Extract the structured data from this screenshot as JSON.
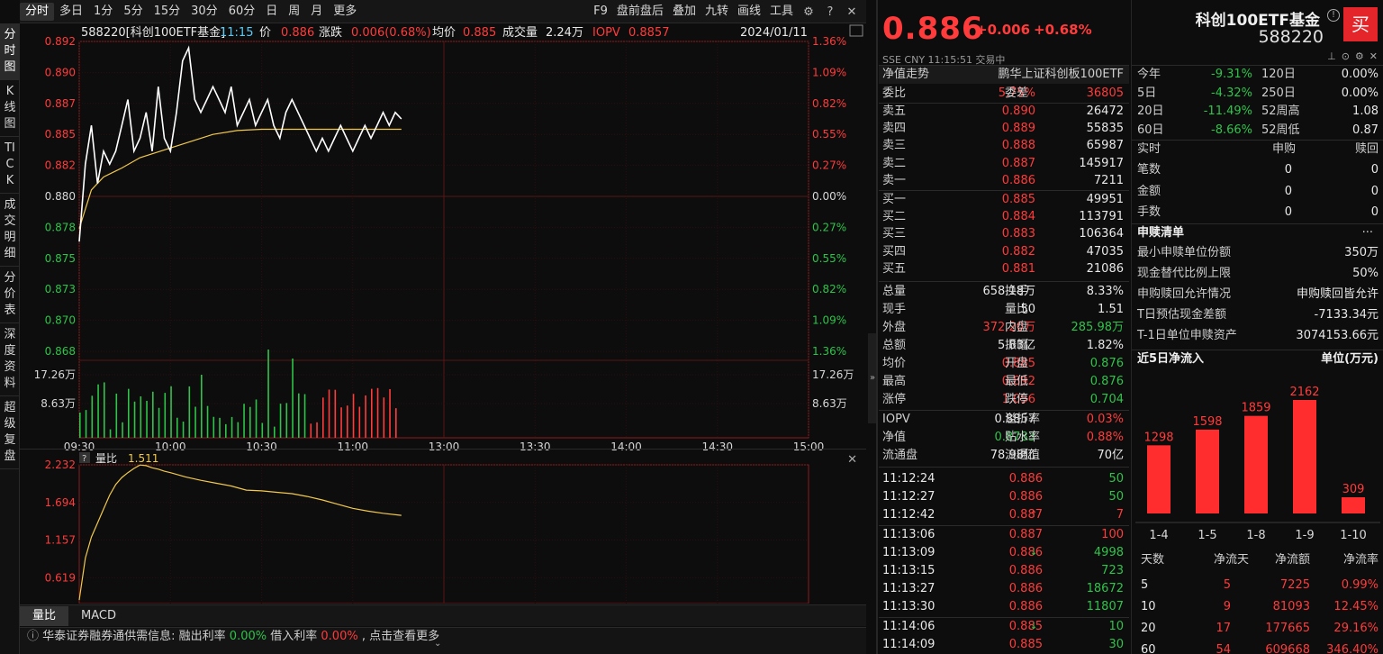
{
  "toolbar": {
    "periods": [
      "分时",
      "多日",
      "1分",
      "5分",
      "15分",
      "30分",
      "60分",
      "日",
      "周",
      "月",
      "更多"
    ],
    "active_period": "分时",
    "right_buttons": [
      "F9",
      "盘前盘后",
      "叠加",
      "九转",
      "画线",
      "工具"
    ]
  },
  "left_nav": [
    "分时图",
    "K线图",
    "TICK",
    "成交明细",
    "分价表",
    "深度资料",
    "超级复盘"
  ],
  "chart_header": {
    "code_name": "588220[科创100ETF基金]",
    "time": "11:15",
    "price_label": "价",
    "price": "0.886",
    "change_label": "涨跌",
    "change": "0.006(0.68%)",
    "avg_label": "均价",
    "avg": "0.885",
    "vol_label": "成交量",
    "vol": "2.24万",
    "iopv_label": "IOPV",
    "iopv": "0.8857",
    "date": "2024/01/11"
  },
  "chart_data": [
    {
      "type": "line",
      "x_ticks": [
        "09:30",
        "10:00",
        "10:30",
        "11:00",
        "13:00",
        "13:30",
        "14:00",
        "14:30",
        "15:00"
      ],
      "y_ticks_left": [
        "0.892",
        "0.890",
        "0.887",
        "0.885",
        "0.882",
        "0.880",
        "0.878",
        "0.875",
        "0.873",
        "0.870",
        "0.868"
      ],
      "y_ticks_right": [
        "1.36%",
        "1.09%",
        "0.82%",
        "0.55%",
        "0.27%",
        "0.00%",
        "0.27%",
        "0.55%",
        "0.82%",
        "1.09%",
        "1.36%"
      ],
      "ylim": [
        0.868,
        0.892
      ],
      "prev_close": 0.88,
      "series": [
        {
          "x": [
            0,
            2,
            4,
            6,
            8,
            10,
            12,
            14,
            16,
            18,
            20,
            22,
            24,
            26,
            28,
            30,
            32,
            34,
            36,
            38,
            40,
            42,
            44,
            46,
            48,
            50,
            52,
            54,
            56,
            58,
            60,
            62,
            64,
            66,
            68,
            70,
            72,
            74,
            76,
            78,
            80,
            82,
            84,
            86,
            88,
            90,
            92,
            94,
            96,
            98,
            100,
            102,
            104,
            106
          ],
          "values": [
            0.8765,
            0.8825,
            0.8855,
            0.881,
            0.8835,
            0.8825,
            0.8835,
            0.8855,
            0.8875,
            0.8835,
            0.8845,
            0.8865,
            0.8835,
            0.8885,
            0.8845,
            0.8835,
            0.8865,
            0.8905,
            0.8915,
            0.8875,
            0.8865,
            0.8875,
            0.8885,
            0.8875,
            0.8865,
            0.8885,
            0.8855,
            0.8865,
            0.8875,
            0.8855,
            0.8865,
            0.8875,
            0.8855,
            0.8845,
            0.8865,
            0.8875,
            0.8865,
            0.8855,
            0.8845,
            0.8835,
            0.8845,
            0.8835,
            0.8845,
            0.8855,
            0.8845,
            0.8835,
            0.8845,
            0.8855,
            0.8845,
            0.8855,
            0.8865,
            0.8855,
            0.8865,
            0.886
          ]
        },
        {
          "x": [
            0,
            4,
            8,
            14,
            20,
            28,
            36,
            44,
            52,
            60,
            70,
            80,
            90,
            100,
            106
          ],
          "values": [
            0.8775,
            0.8805,
            0.8815,
            0.8822,
            0.883,
            0.8836,
            0.8842,
            0.8848,
            0.8851,
            0.8852,
            0.8852,
            0.8852,
            0.8852,
            0.8852,
            0.8852
          ]
        }
      ],
      "volume_ticks": [
        "17.26万",
        "8.63万"
      ],
      "volume_max": 25.9
    },
    {
      "type": "line",
      "title": "量比",
      "value": "1.511",
      "y_ticks": [
        "2.232",
        "1.694",
        "1.157",
        "0.619"
      ],
      "ylim": [
        0.25,
        2.232
      ],
      "series": [
        {
          "x": [
            0,
            2,
            4,
            6,
            8,
            10,
            12,
            14,
            16,
            18,
            20,
            22,
            24,
            26,
            28,
            30,
            35,
            40,
            45,
            50,
            55,
            60,
            65,
            70,
            75,
            80,
            85,
            90,
            95,
            100,
            106
          ],
          "values": [
            0.3,
            0.9,
            1.2,
            1.4,
            1.6,
            1.8,
            1.95,
            2.05,
            2.12,
            2.18,
            2.23,
            2.22,
            2.19,
            2.17,
            2.14,
            2.12,
            2.06,
            2.01,
            1.97,
            1.93,
            1.87,
            1.86,
            1.84,
            1.82,
            1.78,
            1.73,
            1.67,
            1.61,
            1.57,
            1.54,
            1.51
          ]
        }
      ]
    }
  ],
  "indicator_tabs": [
    "量比",
    "MACD"
  ],
  "ticker": {
    "prefix": "华泰证券融券通供需信息: 融出利率",
    "rate1": "0.00%",
    "mid": "借入利率",
    "rate2": "0.00%",
    "suffix": ", 点击查看更多"
  },
  "quote": {
    "price": "0.886",
    "change": "+0.006",
    "change_pct": "+0.68%",
    "market_line": "SSE  CNY  11:15:51  交易中",
    "nav_trend": "净值走势",
    "index_name": "鹏华上证科创板100ETF",
    "weibi_label": "委比",
    "weibi": "5.75%",
    "weicha_label": "委差",
    "weicha": "36805",
    "asks": [
      {
        "label": "卖五",
        "price": "0.890",
        "vol": "26472"
      },
      {
        "label": "卖四",
        "price": "0.889",
        "vol": "55835"
      },
      {
        "label": "卖三",
        "price": "0.888",
        "vol": "65987"
      },
      {
        "label": "卖二",
        "price": "0.887",
        "vol": "145917"
      },
      {
        "label": "卖一",
        "price": "0.886",
        "vol": "7211"
      }
    ],
    "bids": [
      {
        "label": "买一",
        "price": "0.885",
        "vol": "49951"
      },
      {
        "label": "买二",
        "price": "0.884",
        "vol": "113791"
      },
      {
        "label": "买三",
        "price": "0.883",
        "vol": "106364"
      },
      {
        "label": "买四",
        "price": "0.882",
        "vol": "47035"
      },
      {
        "label": "买五",
        "price": "0.881",
        "vol": "21086"
      }
    ],
    "stats": [
      {
        "l1": "总量",
        "v1": "658.18万",
        "c1": "white",
        "l2": "换手",
        "v2": "8.33%",
        "c2": "white"
      },
      {
        "l1": "现手",
        "v1": "50",
        "c1": "white",
        "l2": "量比",
        "v2": "1.51",
        "c2": "white"
      },
      {
        "l1": "外盘",
        "v1": "372.20万",
        "c1": "red",
        "l2": "内盘",
        "v2": "285.98万",
        "c2": "green"
      },
      {
        "l1": "总额",
        "v1": "5.83亿",
        "c1": "white",
        "l2": "振幅",
        "v2": "1.82%",
        "c2": "white"
      },
      {
        "l1": "均价",
        "v1": "0.885",
        "c1": "red",
        "l2": "开盘",
        "v2": "0.876",
        "c2": "green"
      },
      {
        "l1": "最高",
        "v1": "0.892",
        "c1": "red",
        "l2": "最低",
        "v2": "0.876",
        "c2": "green"
      },
      {
        "l1": "涨停",
        "v1": "1.056",
        "c1": "red",
        "l2": "跌停",
        "v2": "0.704",
        "c2": "green"
      }
    ],
    "stats2": [
      {
        "l1": "IOPV",
        "v1": "0.8857",
        "c1": "white",
        "l2": "溢折率",
        "v2": "0.03%",
        "c2": "red"
      },
      {
        "l1": "净值",
        "v1": "0.8783",
        "c1": "green",
        "l2": "贴水率",
        "v2": "0.88%",
        "c2": "red"
      },
      {
        "l1": "流通盘",
        "v1": "78.98亿",
        "c1": "white",
        "l2": "流通值",
        "v2": "70亿",
        "c2": "white"
      }
    ],
    "trades": [
      {
        "time": "11:12:24",
        "price": "0.886",
        "arrow": "",
        "vol": "50",
        "vc": "green"
      },
      {
        "time": "11:12:27",
        "price": "0.886",
        "arrow": "",
        "vol": "50",
        "vc": "green"
      },
      {
        "time": "11:12:42",
        "price": "0.887",
        "arrow": "↑",
        "vol": "7",
        "vc": "red"
      },
      {
        "time": "11:13:06",
        "price": "0.887",
        "arrow": "",
        "vol": "100",
        "vc": "red"
      },
      {
        "time": "11:13:09",
        "price": "0.886",
        "arrow": "↓",
        "vol": "4998",
        "vc": "green"
      },
      {
        "time": "11:13:15",
        "price": "0.886",
        "arrow": "",
        "vol": "723",
        "vc": "green"
      },
      {
        "time": "11:13:27",
        "price": "0.886",
        "arrow": "",
        "vol": "18672",
        "vc": "green"
      },
      {
        "time": "11:13:30",
        "price": "0.886",
        "arrow": "",
        "vol": "11807",
        "vc": "green"
      },
      {
        "time": "11:14:06",
        "price": "0.885",
        "arrow": "↓",
        "vol": "10",
        "vc": "green"
      },
      {
        "time": "11:14:09",
        "price": "0.885",
        "arrow": "",
        "vol": "30",
        "vc": "green"
      }
    ]
  },
  "fund": {
    "name": "科创100ETF基金",
    "code": "588220",
    "buy_label": "买",
    "perf": [
      {
        "l1": "今年",
        "v1": "-9.31%",
        "c1": "green",
        "l2": "120日",
        "v2": "0.00%"
      },
      {
        "l1": "5日",
        "v1": "-4.32%",
        "c1": "green",
        "l2": "250日",
        "v2": "0.00%"
      },
      {
        "l1": "20日",
        "v1": "-11.49%",
        "c1": "green",
        "l2": "52周高",
        "v2": "1.08"
      },
      {
        "l1": "60日",
        "v1": "-8.66%",
        "c1": "green",
        "l2": "52周低",
        "v2": "0.87"
      }
    ],
    "realtime_headers": [
      "实时",
      "申购",
      "赎回"
    ],
    "realtime": [
      {
        "label": "笔数",
        "sub": "0",
        "red": "0"
      },
      {
        "label": "金额",
        "sub": "0",
        "red": "0"
      },
      {
        "label": "手数",
        "sub": "0",
        "red": "0"
      }
    ],
    "list_title": "申赎清单",
    "list_more": "···",
    "list": [
      {
        "label": "最小申赎单位份额",
        "value": "350万"
      },
      {
        "label": "现金替代比例上限",
        "value": "50%"
      },
      {
        "label": "申购赎回允许情况",
        "value": "申购赎回皆允许"
      },
      {
        "label": "T日预估现金差额",
        "value": "-7133.34元"
      },
      {
        "label": "T-1日单位申赎资产",
        "value": "3074153.66元"
      }
    ],
    "flow_title": "近5日净流入",
    "flow_unit": "单位(万元)",
    "flow_chart": {
      "type": "bar",
      "categories": [
        "1-4",
        "1-5",
        "1-8",
        "1-9",
        "1-10"
      ],
      "values": [
        1298,
        1598,
        1859,
        2162,
        309
      ]
    },
    "flow_table_headers": [
      "天数",
      "净流天",
      "净流额",
      "净流率"
    ],
    "flow_table": [
      {
        "days": "5",
        "pos": "5",
        "amt": "7225",
        "rate": "0.99%"
      },
      {
        "days": "10",
        "pos": "9",
        "amt": "81093",
        "rate": "12.45%"
      },
      {
        "days": "20",
        "pos": "17",
        "amt": "177665",
        "rate": "29.16%"
      },
      {
        "days": "60",
        "pos": "54",
        "amt": "609668",
        "rate": "346.40%"
      }
    ]
  }
}
